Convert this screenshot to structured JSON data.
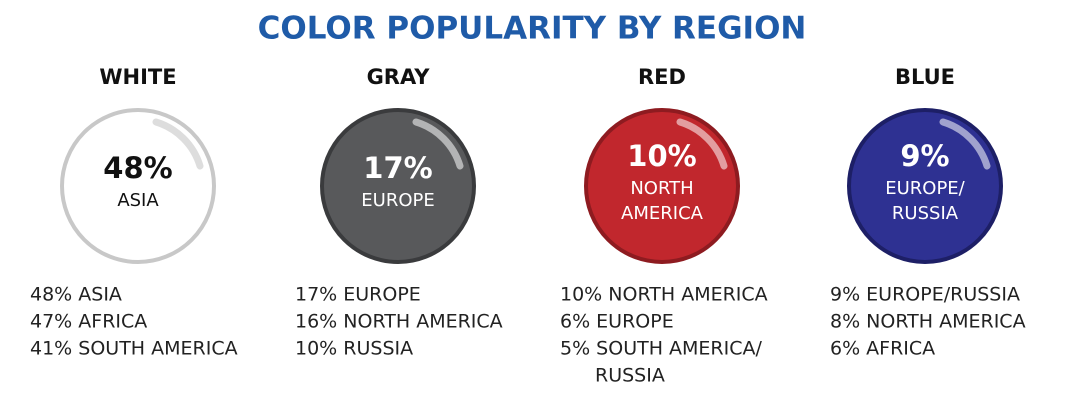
{
  "header": {
    "title": "COLOR POPULARITY BY REGION"
  },
  "columns": [
    {
      "name": "WHITE",
      "badge_value": "48%",
      "badge_label": [
        "ASIA"
      ],
      "items": [
        [
          "48% ASIA"
        ],
        [
          "47% AFRICA"
        ],
        [
          "41% SOUTH AMERICA"
        ]
      ]
    },
    {
      "name": "GRAY",
      "badge_value": "17%",
      "badge_label": [
        "EUROPE"
      ],
      "items": [
        [
          "17% EUROPE"
        ],
        [
          "16% NORTH AMERICA"
        ],
        [
          "10% RUSSIA"
        ]
      ]
    },
    {
      "name": "RED",
      "badge_value": "10%",
      "badge_label": [
        "NORTH",
        "AMERICA"
      ],
      "items": [
        [
          "10% NORTH AMERICA"
        ],
        [
          "6% EUROPE"
        ],
        [
          "5% SOUTH AMERICA/",
          "RUSSIA"
        ]
      ]
    },
    {
      "name": "BLUE",
      "badge_value": "9%",
      "badge_label": [
        "EUROPE/",
        "RUSSIA"
      ],
      "items": [
        [
          "9% EUROPE/RUSSIA"
        ],
        [
          "8% NORTH AMERICA"
        ],
        [
          "6% AFRICA"
        ]
      ]
    }
  ]
}
